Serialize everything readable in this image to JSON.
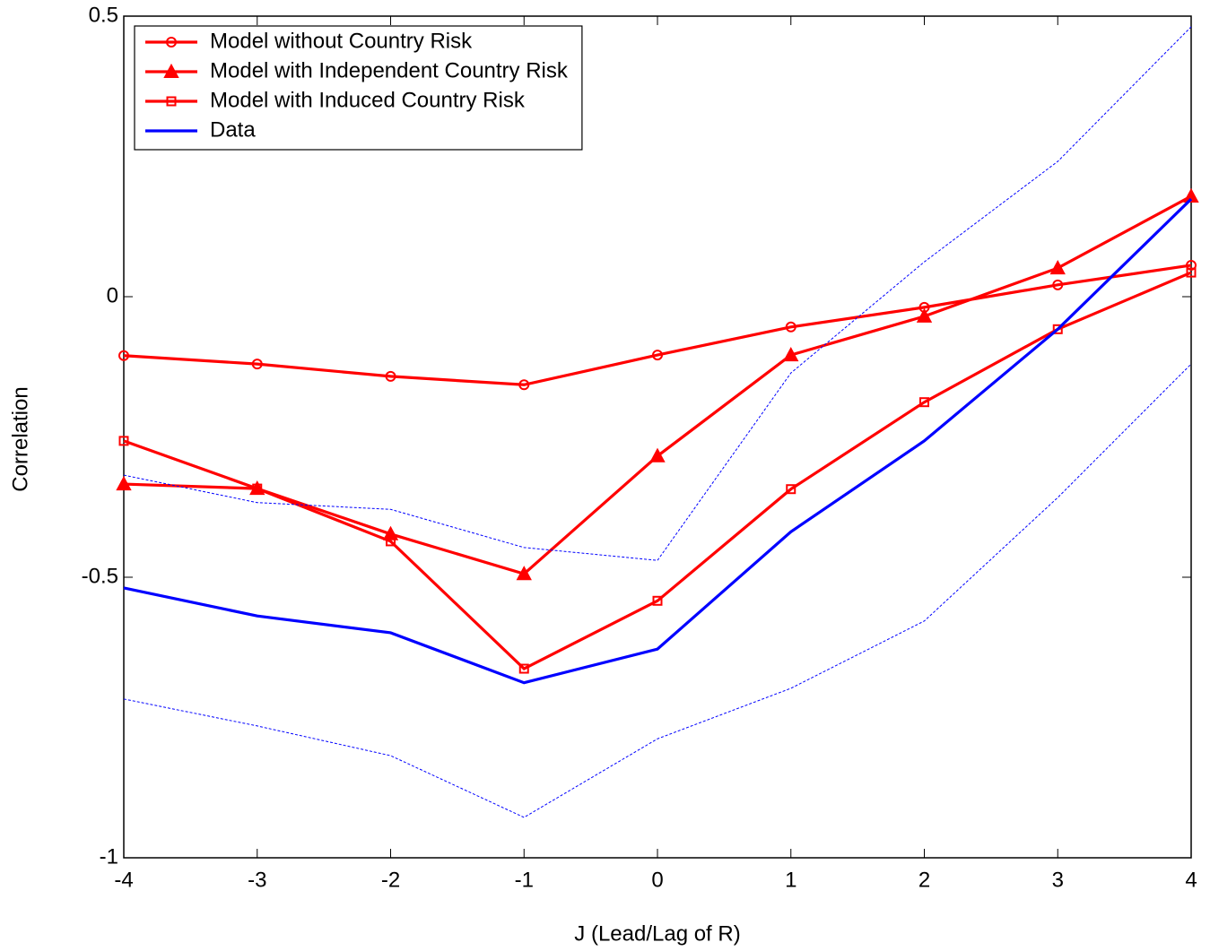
{
  "chart_data": {
    "type": "line",
    "x_label": "J (Lead/Lag of R)",
    "y_label": "Correlation",
    "x": [
      -4,
      -3,
      -2,
      -1,
      0,
      1,
      2,
      3,
      4
    ],
    "xlim": [
      -4,
      4
    ],
    "xticks": [
      -4,
      -3,
      -2,
      -1,
      0,
      1,
      2,
      3,
      4
    ],
    "ylim": [
      -1,
      0.5
    ],
    "yticks": [
      -1,
      -0.5,
      0,
      0.5
    ],
    "legend": "upper left",
    "series": [
      {
        "name": "Model without Country Risk",
        "color": "#ff0000",
        "marker": "circle",
        "line_style": "solid",
        "values": [
          -0.105,
          -0.12,
          -0.142,
          -0.157,
          -0.104,
          -0.054,
          -0.019,
          0.021,
          0.056
        ]
      },
      {
        "name": "Model with Independent Country Risk",
        "color": "#ff0000",
        "marker": "triangle",
        "line_style": "solid",
        "values": [
          -0.334,
          -0.342,
          -0.423,
          -0.494,
          -0.284,
          -0.104,
          -0.035,
          0.051,
          0.179
        ]
      },
      {
        "name": "Model with Induced Country Risk",
        "color": "#ff0000",
        "marker": "square",
        "line_style": "solid",
        "values": [
          -0.257,
          -0.342,
          -0.436,
          -0.663,
          -0.542,
          -0.343,
          -0.188,
          -0.058,
          0.043
        ]
      },
      {
        "name": "Data",
        "color": "#0000ff",
        "marker": "none",
        "line_style": "solid",
        "values": [
          -0.519,
          -0.569,
          -0.599,
          -0.688,
          -0.628,
          -0.419,
          -0.257,
          -0.058,
          0.174
        ]
      },
      {
        "color": "#0000ff",
        "marker": "none",
        "line_style": "dotted",
        "values": [
          -0.318,
          -0.367,
          -0.379,
          -0.447,
          -0.47,
          -0.136,
          0.062,
          0.241,
          0.481
        ]
      },
      {
        "color": "#0000ff",
        "marker": "none",
        "line_style": "dotted",
        "values": [
          -0.717,
          -0.765,
          -0.818,
          -0.928,
          -0.788,
          -0.698,
          -0.578,
          -0.358,
          -0.12
        ]
      }
    ]
  }
}
